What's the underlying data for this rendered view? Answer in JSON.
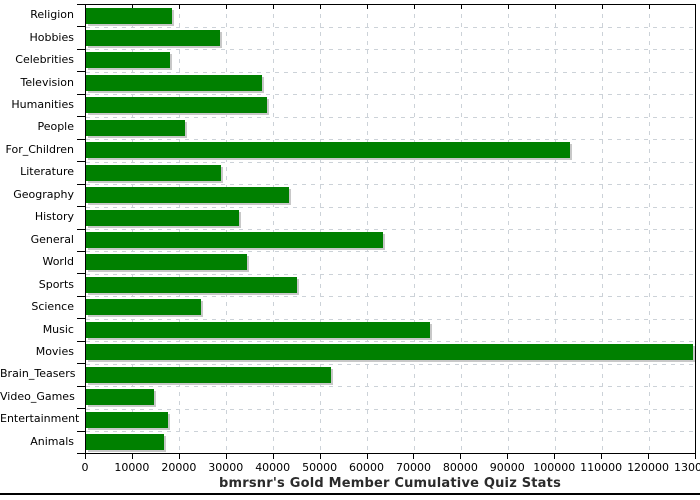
{
  "chart_data": {
    "type": "bar",
    "orientation": "horizontal",
    "title": "bmrsnr's Gold Member Cumulative Quiz Stats",
    "categories": [
      "Religion",
      "Hobbies",
      "Celebrities",
      "Television",
      "Humanities",
      "People",
      "For_Children",
      "Literature",
      "Geography",
      "History",
      "General",
      "World",
      "Sports",
      "Science",
      "Music",
      "Movies",
      "Brain_Teasers",
      "Video_Games",
      "Entertainment",
      "Animals"
    ],
    "values": [
      18300,
      28500,
      17800,
      37600,
      38600,
      21200,
      103200,
      28700,
      43200,
      32500,
      63400,
      34300,
      44900,
      24500,
      73300,
      129300,
      52200,
      14400,
      17400,
      16700
    ],
    "xlabel": "",
    "ylabel": "",
    "xlim": [
      0,
      130000
    ],
    "xticks": [
      0,
      10000,
      20000,
      30000,
      40000,
      50000,
      60000,
      70000,
      80000,
      90000,
      100000,
      110000,
      120000,
      130000
    ],
    "grid": "dashed, both axes",
    "legend": "none",
    "colors": {
      "bar": "#008000",
      "bar_shadow": "#c8c8c8",
      "grid": "#ccd2d8",
      "axis": "#000000",
      "label_text": "#000000",
      "title_text": "#2b2b2b",
      "background": "#ffffff"
    }
  }
}
